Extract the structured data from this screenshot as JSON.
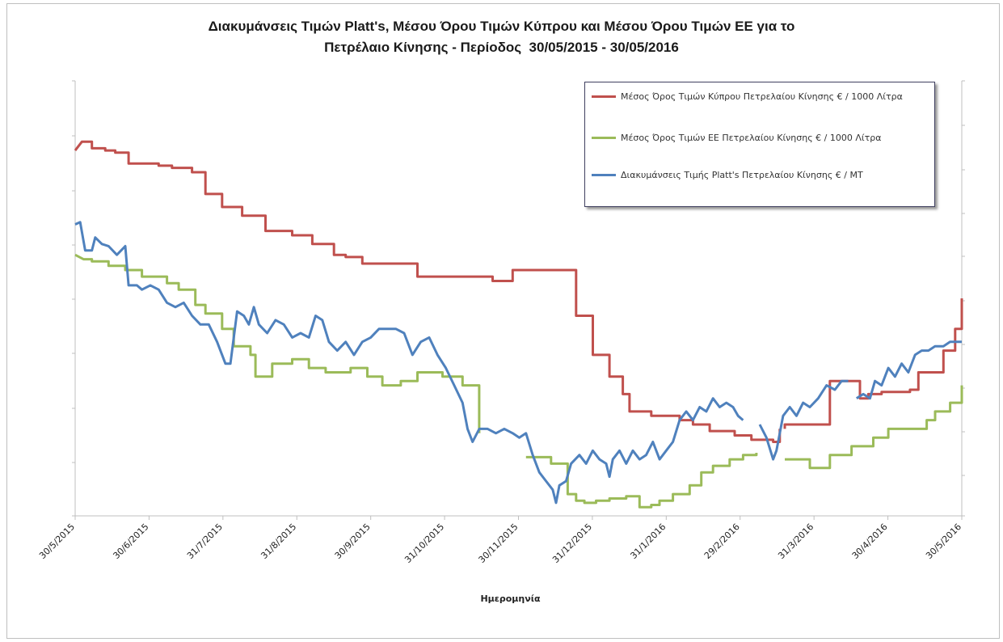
{
  "chart_data": {
    "type": "line",
    "title_line1": "Διακυμάνσεις Τιμών Platt's, Μέσου Όρου Τιμών Κύπρου και Μέσου Όρου Τιμών ΕΕ για το",
    "title_line2": "Πετρέλαιο Κίνησης - Περίοδος  30/05/2015 - 30/05/2016",
    "xlabel": "Ημερομηνία",
    "x_ticks": [
      "30/5/2015",
      "30/6/2015",
      "31/7/2015",
      "31/8/2015",
      "30/9/2015",
      "31/10/2015",
      "30/11/2015",
      "31/12/2015",
      "31/1/2016",
      "29/2/2016",
      "31/3/2016",
      "30/4/2016",
      "30/5/2016"
    ],
    "x_range": [
      "30/5/2015",
      "30/5/2016"
    ],
    "y_axis_labels_visible": false,
    "grid": false,
    "legend_position": "top-right",
    "series": [
      {
        "name": "Μέσος Όρος Τιμών Κύπρου Πετρελαίου Κίνησης  € / 1000 Λίτρα",
        "color": "#c0504d",
        "points": [
          [
            0,
            0.84
          ],
          [
            4,
            0.86
          ],
          [
            10,
            0.86
          ],
          [
            10,
            0.845
          ],
          [
            18,
            0.845
          ],
          [
            18,
            0.84
          ],
          [
            24,
            0.84
          ],
          [
            24,
            0.835
          ],
          [
            32,
            0.835
          ],
          [
            32,
            0.81
          ],
          [
            50,
            0.81
          ],
          [
            50,
            0.805
          ],
          [
            58,
            0.805
          ],
          [
            58,
            0.8
          ],
          [
            70,
            0.8
          ],
          [
            70,
            0.79
          ],
          [
            78,
            0.79
          ],
          [
            78,
            0.74
          ],
          [
            88,
            0.74
          ],
          [
            88,
            0.71
          ],
          [
            100,
            0.71
          ],
          [
            100,
            0.69
          ],
          [
            114,
            0.69
          ],
          [
            114,
            0.655
          ],
          [
            130,
            0.655
          ],
          [
            130,
            0.645
          ],
          [
            142,
            0.645
          ],
          [
            142,
            0.625
          ],
          [
            155,
            0.625
          ],
          [
            155,
            0.6
          ],
          [
            162,
            0.6
          ],
          [
            162,
            0.595
          ],
          [
            172,
            0.595
          ],
          [
            172,
            0.58
          ],
          [
            195,
            0.58
          ],
          [
            195,
            0.58
          ],
          [
            205,
            0.58
          ],
          [
            205,
            0.55
          ],
          [
            220,
            0.55
          ],
          [
            220,
            0.55
          ],
          [
            233,
            0.55
          ],
          [
            233,
            0.55
          ],
          [
            250,
            0.55
          ],
          [
            250,
            0.54
          ],
          [
            262,
            0.54
          ],
          [
            262,
            0.565
          ],
          [
            300,
            0.565
          ],
          [
            300,
            0.46
          ],
          [
            310,
            0.46
          ],
          [
            310,
            0.37
          ],
          [
            320,
            0.37
          ],
          [
            320,
            0.32
          ],
          [
            328,
            0.32
          ],
          [
            328,
            0.28
          ],
          [
            332,
            0.28
          ],
          [
            332,
            0.24
          ],
          [
            345,
            0.24
          ],
          [
            345,
            0.23
          ],
          [
            355,
            0.23
          ],
          [
            355,
            0.23
          ],
          [
            362,
            0.23
          ],
          [
            362,
            0.22
          ],
          [
            370,
            0.22
          ],
          [
            370,
            0.21
          ],
          [
            380,
            0.21
          ],
          [
            380,
            0.195
          ],
          [
            395,
            0.195
          ],
          [
            395,
            0.185
          ],
          [
            405,
            0.185
          ],
          [
            405,
            0.175
          ],
          [
            418,
            0.175
          ],
          [
            418,
            0.17
          ],
          [
            420,
            0.17
          ],
          [
            420,
            0.17
          ],
          [
            422,
            0.17
          ],
          [
            422,
            0.2
          ],
          [
            425,
            0.2
          ],
          [
            425,
            0.21
          ],
          [
            440,
            0.21
          ],
          [
            440,
            0.21
          ],
          [
            452,
            0.21
          ],
          [
            452,
            0.31
          ],
          [
            465,
            0.31
          ],
          [
            465,
            0.31
          ],
          [
            470,
            0.31
          ],
          [
            470,
            0.27
          ],
          [
            475,
            0.27
          ],
          [
            475,
            0.28
          ],
          [
            483,
            0.28
          ],
          [
            483,
            0.285
          ],
          [
            495,
            0.285
          ],
          [
            495,
            0.285
          ],
          [
            500,
            0.285
          ],
          [
            500,
            0.29
          ],
          [
            505,
            0.29
          ],
          [
            505,
            0.33
          ],
          [
            512,
            0.33
          ],
          [
            512,
            0.33
          ],
          [
            520,
            0.33
          ],
          [
            520,
            0.38
          ],
          [
            527,
            0.38
          ],
          [
            527,
            0.43
          ],
          [
            531,
            0.43
          ],
          [
            531,
            0.5
          ]
        ],
        "note_gaps": [
          [
            422,
            432
          ]
        ]
      },
      {
        "name": "Μέσος Όρος Τιμών ΕΕ Πετρελαίου Κίνησης  € / 1000 Λίτρα",
        "color": "#9bbb59"
      },
      {
        "name": "Διακυμάνσεις Τιμής Platt's Πετρελαίου Κίνησης € / MT",
        "color": "#4f81bd"
      }
    ]
  }
}
